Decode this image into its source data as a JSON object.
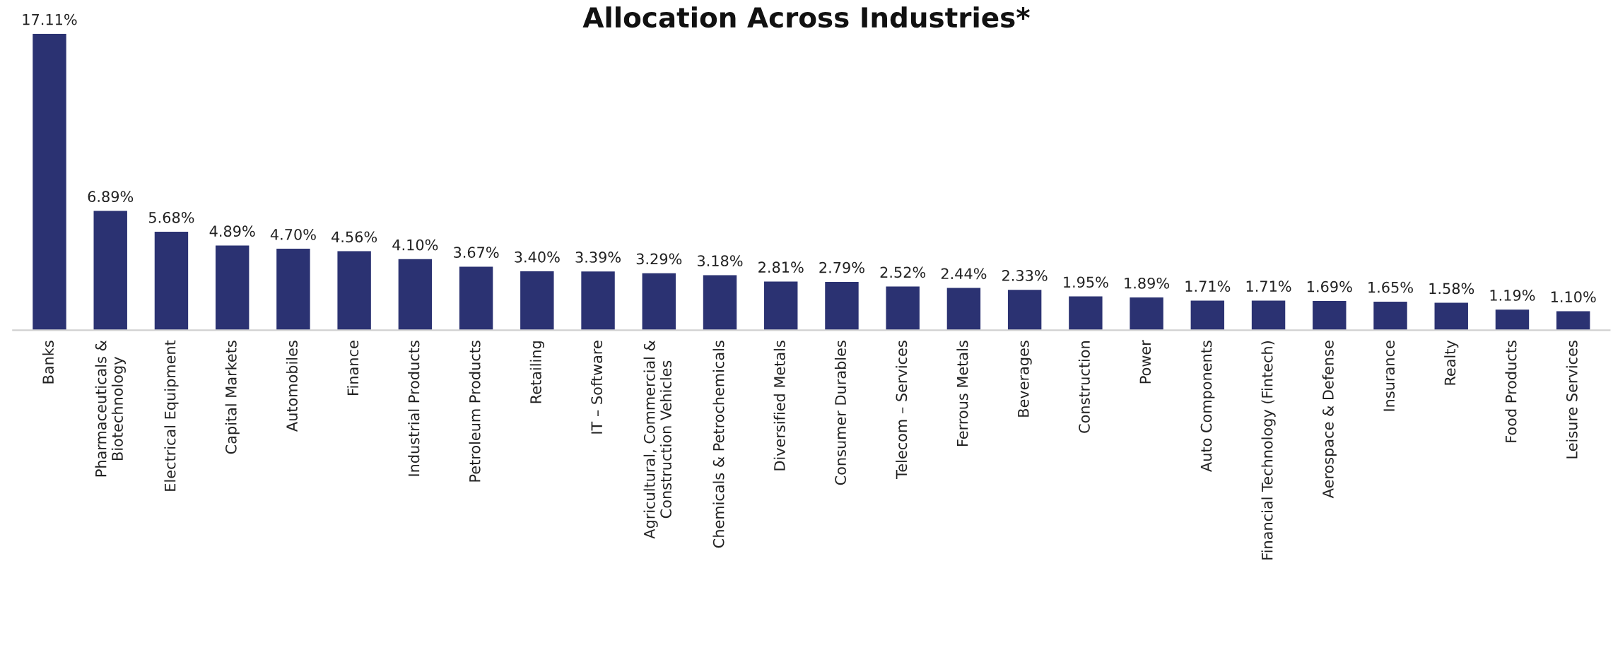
{
  "chart_data": {
    "type": "bar",
    "title": "Allocation Across Industries*",
    "categories": [
      "Banks",
      "Pharmaceuticals &\nBiotechnology",
      "Electrical Equipment",
      "Capital Markets",
      "Automobiles",
      "Finance",
      "Industrial Products",
      "Petroleum Products",
      "Retailing",
      "IT – Software",
      "Agricultural, Commercial &\nConstruction Vehicles",
      "Chemicals & Petrochemicals",
      "Diversified Metals",
      "Consumer Durables",
      "Telecom – Services",
      "Ferrous Metals",
      "Beverages",
      "Construction",
      "Power",
      "Auto Components",
      "Financial Technology (Fintech)",
      "Aerospace & Defense",
      "Insurance",
      "Realty",
      "Food Products",
      "Leisure Services"
    ],
    "values": [
      17.11,
      6.89,
      5.68,
      4.89,
      4.7,
      4.56,
      4.1,
      3.67,
      3.4,
      3.39,
      3.29,
      3.18,
      2.81,
      2.79,
      2.52,
      2.44,
      2.33,
      1.95,
      1.89,
      1.71,
      1.71,
      1.69,
      1.65,
      1.58,
      1.19,
      1.1
    ],
    "value_labels": [
      "17.11%",
      "6.89%",
      "5.68%",
      "4.89%",
      "4.70%",
      "4.56%",
      "4.10%",
      "3.67%",
      "3.40%",
      "3.39%",
      "3.29%",
      "3.18%",
      "2.81%",
      "2.79%",
      "2.52%",
      "2.44%",
      "2.33%",
      "1.95%",
      "1.89%",
      "1.71%",
      "1.71%",
      "1.69%",
      "1.65%",
      "1.58%",
      "1.19%",
      "1.10%"
    ],
    "color": "#2b3272",
    "grid": false,
    "legend": false
  }
}
